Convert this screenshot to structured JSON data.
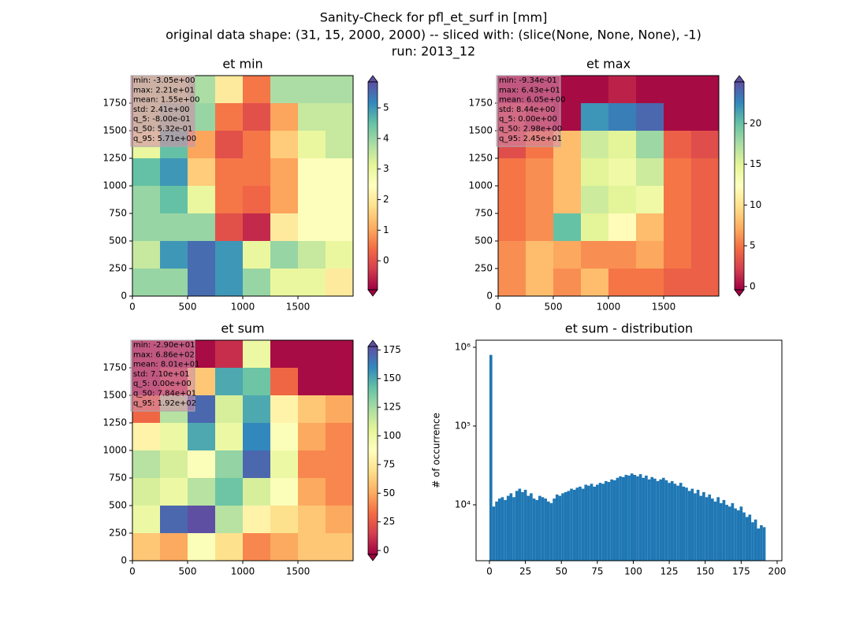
{
  "suptitle": [
    "Sanity-Check for pfl_et_surf in [mm]",
    "original data shape: (31, 15, 2000, 2000) -- sliced with: (slice(None, None, None), -1)",
    "run: 2013_12"
  ],
  "chart_data": [
    {
      "type": "heatmap",
      "title": "et min",
      "colormap": [
        "#9e0142",
        "#d53e4f",
        "#f46d43",
        "#fdae61",
        "#fee08b",
        "#ffffbf",
        "#e6f598",
        "#abdda4",
        "#66c2a5",
        "#3288bd",
        "#5e4fa2"
      ],
      "xlim": [
        0,
        2000
      ],
      "ylim": [
        0,
        2000
      ],
      "xticks": [
        0,
        500,
        1000,
        1500
      ],
      "yticks": [
        0,
        250,
        500,
        750,
        1000,
        1250,
        1500,
        1750
      ],
      "clim": [
        -0.95,
        5.85
      ],
      "cticks": [
        0,
        1,
        2,
        3,
        4,
        5
      ],
      "stats": [
        "min: -3.05e+00",
        "max: 2.21e+01",
        "mean: 1.55e+00",
        "std: 2.41e+00",
        "q_5: -8.00e-01",
        "q_50: 5.32e-01",
        "q_95: 5.71e+00"
      ],
      "grid": [
        [
          3.5,
          3.5,
          3.8,
          2,
          0.5,
          3.8,
          3.8,
          3.8
        ],
        [
          3.5,
          4,
          4,
          0.5,
          0,
          1,
          3.5,
          3.5
        ],
        [
          3,
          4.5,
          1,
          0,
          0.5,
          1.5,
          3,
          3.5
        ],
        [
          4.5,
          5,
          1.5,
          0.5,
          0.5,
          1,
          2.5,
          2.5
        ],
        [
          4,
          4.5,
          3,
          0.5,
          0.3,
          1,
          2.5,
          2.5
        ],
        [
          4,
          4,
          4,
          0,
          -0.5,
          2,
          2.5,
          2.5
        ],
        [
          3.5,
          5,
          5.5,
          5,
          3,
          4,
          3.5,
          3
        ],
        [
          4,
          4,
          5.5,
          5,
          4,
          3,
          3,
          2
        ]
      ]
    },
    {
      "type": "heatmap",
      "title": "et max",
      "colormap": [
        "#9e0142",
        "#d53e4f",
        "#f46d43",
        "#fdae61",
        "#fee08b",
        "#ffffbf",
        "#e6f598",
        "#abdda4",
        "#66c2a5",
        "#3288bd",
        "#5e4fa2"
      ],
      "xlim": [
        0,
        2000
      ],
      "ylim": [
        0,
        2000
      ],
      "xticks": [
        0,
        500,
        1000,
        1500
      ],
      "yticks": [
        0,
        250,
        500,
        750,
        1000,
        1250,
        1500,
        1750
      ],
      "clim": [
        -0.4,
        25.1
      ],
      "cticks": [
        0,
        5,
        10,
        15,
        20
      ],
      "stats": [
        "min: -9.34e-01",
        "max: 6.43e+01",
        "mean: 6.05e+00",
        "std: 8.44e+00",
        "q_5: 0.00e+00",
        "q_50: 2.98e+00",
        "q_95: 2.45e+01"
      ],
      "grid": [
        [
          0,
          0,
          0,
          0,
          1,
          0,
          0,
          0
        ],
        [
          2,
          1,
          0,
          22,
          23,
          24,
          0,
          0
        ],
        [
          3,
          5,
          8,
          16,
          15,
          18,
          4,
          3
        ],
        [
          5,
          6,
          8,
          15,
          14,
          16,
          5,
          4
        ],
        [
          5,
          6,
          8,
          16,
          15,
          14,
          5,
          4
        ],
        [
          5,
          6,
          20,
          15,
          12,
          8,
          5,
          4
        ],
        [
          6,
          8,
          7,
          6,
          6,
          7,
          5,
          4
        ],
        [
          6,
          8,
          6,
          8,
          5,
          5,
          4,
          4
        ]
      ]
    },
    {
      "type": "heatmap",
      "title": "et sum",
      "colormap": [
        "#9e0142",
        "#d53e4f",
        "#f46d43",
        "#fdae61",
        "#fee08b",
        "#ffffbf",
        "#e6f598",
        "#abdda4",
        "#66c2a5",
        "#3288bd",
        "#5e4fa2"
      ],
      "xlim": [
        0,
        2000
      ],
      "ylim": [
        0,
        2000
      ],
      "xticks": [
        0,
        500,
        1000,
        1500
      ],
      "yticks": [
        0,
        250,
        500,
        750,
        1000,
        1250,
        1500,
        1750
      ],
      "clim": [
        -3.4,
        178
      ],
      "cticks": [
        0,
        25,
        50,
        75,
        100,
        125,
        150,
        175
      ],
      "stats": [
        "min: -2.90e+01",
        "max: 6.86e+02",
        "mean: 8.01e+01",
        "std: 7.10e+01",
        "q_5: 0.00e+00",
        "q_50: 7.84e+01",
        "q_95: 1.92e+02"
      ],
      "grid": [
        [
          0,
          0,
          0,
          10,
          100,
          0,
          0,
          0
        ],
        [
          0,
          10,
          60,
          150,
          140,
          30,
          0,
          0
        ],
        [
          30,
          120,
          170,
          110,
          150,
          80,
          60,
          50
        ],
        [
          80,
          100,
          150,
          100,
          160,
          90,
          50,
          40
        ],
        [
          120,
          110,
          90,
          130,
          170,
          100,
          40,
          40
        ],
        [
          110,
          100,
          120,
          140,
          110,
          90,
          50,
          40
        ],
        [
          100,
          170,
          180,
          120,
          80,
          70,
          60,
          50
        ],
        [
          60,
          50,
          90,
          70,
          40,
          50,
          60,
          60
        ]
      ]
    },
    {
      "type": "histogram",
      "title": "et sum - distribution",
      "y_label": "# of occurrence",
      "color": "#1f77b4",
      "log_y": true,
      "xlim": [
        -9.3,
        203.3
      ],
      "xticks": [
        0,
        25,
        50,
        75,
        100,
        125,
        150,
        175,
        200
      ],
      "ylim": [
        1950,
        1230000
      ],
      "yticks": [
        {
          "value": 10000,
          "label": "10⁴"
        },
        {
          "value": 100000,
          "label": "10⁵"
        },
        {
          "value": 1000000,
          "label": "10⁶"
        }
      ],
      "bins": [
        0,
        2,
        4,
        6,
        8,
        10,
        12,
        14,
        16,
        18,
        20,
        22,
        24,
        26,
        28,
        30,
        32,
        34,
        36,
        38,
        40,
        42,
        44,
        46,
        48,
        50,
        52,
        54,
        56,
        58,
        60,
        62,
        64,
        66,
        68,
        70,
        72,
        74,
        76,
        78,
        80,
        82,
        84,
        86,
        88,
        90,
        92,
        94,
        96,
        98,
        100,
        102,
        104,
        106,
        108,
        110,
        112,
        114,
        116,
        118,
        120,
        122,
        124,
        126,
        128,
        130,
        132,
        134,
        136,
        138,
        140,
        142,
        144,
        146,
        148,
        150,
        152,
        154,
        156,
        158,
        160,
        162,
        164,
        166,
        168,
        170,
        172,
        174,
        176,
        178,
        180,
        182,
        184,
        186,
        188,
        190,
        192
      ],
      "values": [
        800000,
        9500,
        11000,
        12000,
        12500,
        11500,
        13000,
        14000,
        12500,
        15000,
        16000,
        14500,
        15500,
        13000,
        14000,
        12000,
        11500,
        13000,
        12500,
        12000,
        11000,
        10500,
        12000,
        13500,
        13000,
        14000,
        14500,
        15000,
        16000,
        15500,
        16500,
        17000,
        16000,
        18000,
        17500,
        18500,
        17000,
        18000,
        19000,
        18500,
        20000,
        19500,
        21000,
        20500,
        22000,
        23000,
        22500,
        24000,
        23500,
        25000,
        24000,
        23000,
        24500,
        22000,
        23500,
        21000,
        22500,
        21500,
        20000,
        21000,
        22000,
        20500,
        19000,
        20000,
        18500,
        17500,
        19000,
        17000,
        16500,
        15000,
        16000,
        14000,
        15500,
        13000,
        14500,
        12500,
        13500,
        12000,
        11000,
        12500,
        10500,
        11500,
        10000,
        9500,
        10500,
        9000,
        8500,
        9500,
        8000,
        7000,
        7500,
        6000,
        6500,
        5000,
        5500,
        5200
      ]
    }
  ]
}
